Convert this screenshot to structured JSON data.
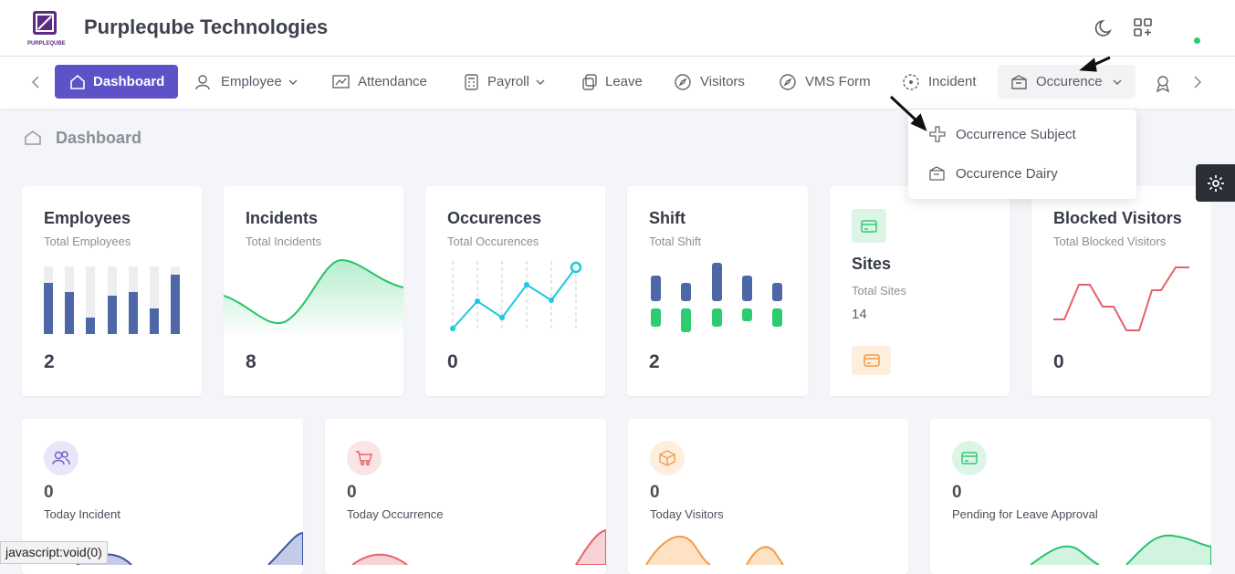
{
  "header": {
    "logo_text": "PURPLEQUBE",
    "title": "Purpleqube Technologies"
  },
  "nav": {
    "items": [
      "Dashboard",
      "Employee",
      "Attendance",
      "Payroll",
      "Leave",
      "Visitors",
      "VMS Form",
      "Incident",
      "Occurence"
    ]
  },
  "dropdown": {
    "items": [
      "Occurrence Subject",
      "Occurence Dairy"
    ]
  },
  "breadcrumb": "Dashboard",
  "stat_cards": [
    {
      "title": "Employees",
      "subtitle": "Total Employees",
      "value": 2
    },
    {
      "title": "Incidents",
      "subtitle": "Total Incidents",
      "value": 8
    },
    {
      "title": "Occurences",
      "subtitle": "Total Occurences",
      "value": 0
    },
    {
      "title": "Shift",
      "subtitle": "Total Shift",
      "value": 2
    },
    {
      "title": "Sites",
      "subtitle": "Total Sites",
      "value": 14
    },
    {
      "title": "Blocked Visitors",
      "subtitle": "Total Blocked Visitors",
      "value": 0
    }
  ],
  "summary_cards": [
    {
      "value": 0,
      "label": "Today Incident"
    },
    {
      "value": 0,
      "label": "Today Occurrence"
    },
    {
      "value": 0,
      "label": "Today Visitors"
    },
    {
      "value": 0,
      "label": "Pending for Leave Approval"
    }
  ],
  "status_bar": "javascript:void(0)"
}
